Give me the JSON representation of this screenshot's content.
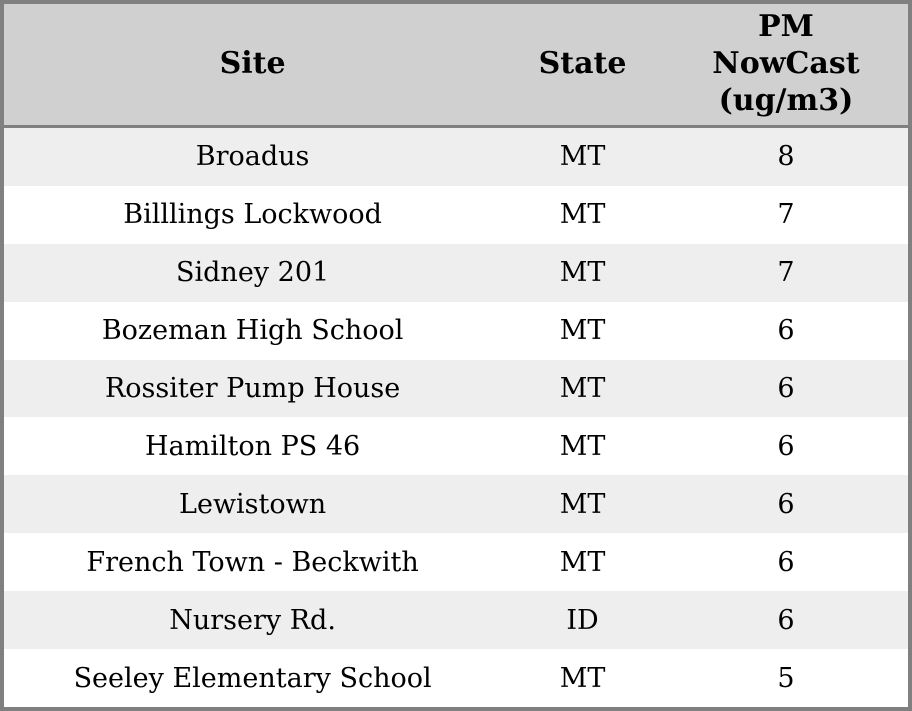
{
  "colors": {
    "outer_border": "#808080",
    "header_background": "#d0d0d0",
    "header_separator": "#808080",
    "row_alternate": "#eeeeee",
    "row_default": "#ffffff",
    "text": "#000000"
  },
  "chart_data": {
    "type": "table",
    "columns": [
      "Site",
      "State",
      "PM NowCast (ug/m3)"
    ],
    "rows": [
      {
        "site": "Broadus",
        "state": "MT",
        "pm_nowcast": 8
      },
      {
        "site": "Billlings Lockwood",
        "state": "MT",
        "pm_nowcast": 7
      },
      {
        "site": "Sidney 201",
        "state": "MT",
        "pm_nowcast": 7
      },
      {
        "site": "Bozeman High School",
        "state": "MT",
        "pm_nowcast": 6
      },
      {
        "site": "Rossiter Pump House",
        "state": "MT",
        "pm_nowcast": 6
      },
      {
        "site": "Hamilton PS 46",
        "state": "MT",
        "pm_nowcast": 6
      },
      {
        "site": "Lewistown",
        "state": "MT",
        "pm_nowcast": 6
      },
      {
        "site": "French Town - Beckwith",
        "state": "MT",
        "pm_nowcast": 6
      },
      {
        "site": "Nursery Rd.",
        "state": "ID",
        "pm_nowcast": 6
      },
      {
        "site": "Seeley Elementary School",
        "state": "MT",
        "pm_nowcast": 5
      }
    ]
  }
}
